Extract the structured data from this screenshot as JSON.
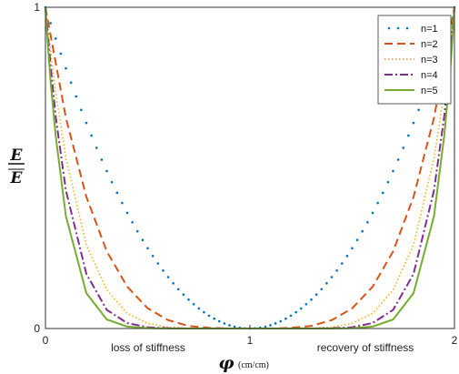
{
  "chart_data": {
    "type": "line",
    "xlabel_symbol": "φ",
    "xlabel_unit": "(cm/cm)",
    "ylabel_top": "E",
    "ylabel_bottom": "E",
    "xlim": [
      0,
      2
    ],
    "ylim": [
      0,
      1
    ],
    "x_ticks": [
      "0",
      "1",
      "2"
    ],
    "y_ticks": [
      "0",
      "1"
    ],
    "annotations": [
      {
        "text": "loss of stiffness",
        "x": 0.5
      },
      {
        "text": "recovery of stiffness",
        "x": 1.5
      }
    ],
    "grid": false,
    "legend_position": "top-right",
    "series": [
      {
        "name": "n=1",
        "color": "#0072BD",
        "style": "dotted",
        "x": [
          0,
          0.1,
          0.2,
          0.3,
          0.4,
          0.5,
          0.6,
          0.7,
          0.8,
          0.9,
          1.0,
          1.1,
          1.2,
          1.3,
          1.4,
          1.5,
          1.6,
          1.7,
          1.8,
          1.9,
          2.0
        ],
        "values": [
          1,
          0.81,
          0.64,
          0.49,
          0.36,
          0.25,
          0.16,
          0.09,
          0.04,
          0.01,
          0,
          0.01,
          0.04,
          0.09,
          0.16,
          0.25,
          0.36,
          0.49,
          0.64,
          0.81,
          1
        ]
      },
      {
        "name": "n=2",
        "color": "#D95319",
        "style": "dashed",
        "x": [
          0,
          0.1,
          0.2,
          0.3,
          0.4,
          0.5,
          0.6,
          0.7,
          0.8,
          0.9,
          1.0,
          1.1,
          1.2,
          1.3,
          1.4,
          1.5,
          1.6,
          1.7,
          1.8,
          1.9,
          2.0
        ],
        "values": [
          1,
          0.656,
          0.41,
          0.24,
          0.13,
          0.063,
          0.026,
          0.008,
          0.002,
          0,
          0,
          0,
          0.002,
          0.008,
          0.026,
          0.063,
          0.13,
          0.24,
          0.41,
          0.656,
          1
        ]
      },
      {
        "name": "n=3",
        "color": "#EDB120",
        "style": "dotted",
        "x": [
          0,
          0.05,
          0.1,
          0.2,
          0.3,
          0.4,
          0.5,
          0.6,
          0.7,
          0.8,
          0.9,
          1.0,
          1.1,
          1.2,
          1.3,
          1.4,
          1.5,
          1.6,
          1.7,
          1.8,
          1.9,
          1.95,
          2.0
        ],
        "values": [
          1,
          0.735,
          0.53,
          0.26,
          0.12,
          0.047,
          0.016,
          0.004,
          0.001,
          0,
          0,
          0,
          0,
          0,
          0.001,
          0.004,
          0.016,
          0.047,
          0.12,
          0.26,
          0.53,
          0.735,
          1
        ]
      },
      {
        "name": "n=4",
        "color": "#7E2F8E",
        "style": "dashdot",
        "x": [
          0,
          0.025,
          0.05,
          0.1,
          0.2,
          0.3,
          0.4,
          0.5,
          0.6,
          0.7,
          0.8,
          0.9,
          1.0,
          1.1,
          1.2,
          1.3,
          1.4,
          1.5,
          1.6,
          1.7,
          1.8,
          1.9,
          1.95,
          1.975,
          2.0
        ],
        "values": [
          1,
          0.82,
          0.66,
          0.43,
          0.17,
          0.058,
          0.017,
          0.004,
          0.001,
          0,
          0,
          0,
          0,
          0,
          0,
          0,
          0.001,
          0.004,
          0.017,
          0.058,
          0.17,
          0.43,
          0.66,
          0.82,
          1
        ]
      },
      {
        "name": "n=5",
        "color": "#77AC30",
        "style": "solid",
        "x": [
          0,
          0.01,
          0.025,
          0.05,
          0.1,
          0.2,
          0.3,
          0.4,
          0.5,
          0.6,
          0.7,
          0.8,
          0.9,
          1.0,
          1.1,
          1.2,
          1.3,
          1.4,
          1.5,
          1.6,
          1.7,
          1.8,
          1.9,
          1.95,
          1.975,
          1.99,
          2.0
        ],
        "values": [
          1,
          0.9,
          0.77,
          0.6,
          0.35,
          0.11,
          0.028,
          0.006,
          0.001,
          0,
          0,
          0,
          0,
          0,
          0,
          0,
          0,
          0,
          0.001,
          0.006,
          0.028,
          0.11,
          0.35,
          0.6,
          0.77,
          0.9,
          1
        ]
      }
    ]
  }
}
